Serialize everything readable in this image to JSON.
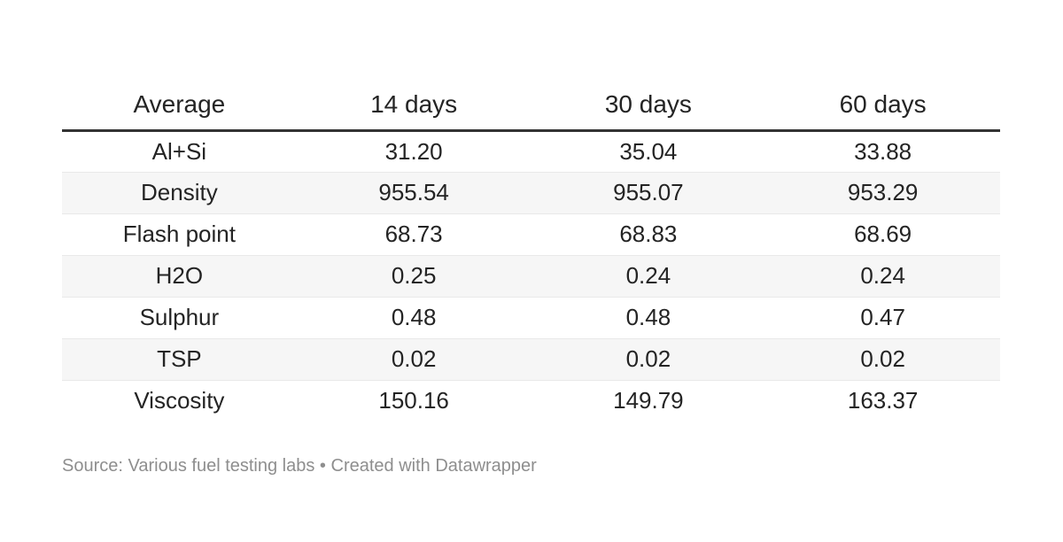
{
  "colors": {
    "background": "#ffffff",
    "text": "#242424",
    "header_border": "#333333",
    "row_border": "#e9e9e9",
    "stripe_bg": "#f6f6f6",
    "footer_text": "#8e8e8e"
  },
  "chart_data": {
    "type": "table",
    "columns": [
      "Average",
      "14 days",
      "30 days",
      "60 days"
    ],
    "rows": [
      {
        "label": "Al+Si",
        "values": [
          "31.20",
          "35.04",
          "33.88"
        ]
      },
      {
        "label": "Density",
        "values": [
          "955.54",
          "955.07",
          "953.29"
        ]
      },
      {
        "label": "Flash point",
        "values": [
          "68.73",
          "68.83",
          "68.69"
        ]
      },
      {
        "label": "H2O",
        "values": [
          "0.25",
          "0.24",
          "0.24"
        ]
      },
      {
        "label": "Sulphur",
        "values": [
          "0.48",
          "0.48",
          "0.47"
        ]
      },
      {
        "label": "TSP",
        "values": [
          "0.02",
          "0.02",
          "0.02"
        ]
      },
      {
        "label": "Viscosity",
        "values": [
          "150.16",
          "149.79",
          "163.37"
        ]
      }
    ],
    "layout": {
      "alignment": "center",
      "striped_row_labels": [
        "Density",
        "H2O",
        "TSP"
      ],
      "legend_position": "none",
      "grid": "horizontal-row-rules"
    }
  },
  "footer": {
    "source_label": "Source:",
    "source_name": "Various fuel testing labs",
    "separator": "•",
    "credit": "Created with Datawrapper"
  }
}
